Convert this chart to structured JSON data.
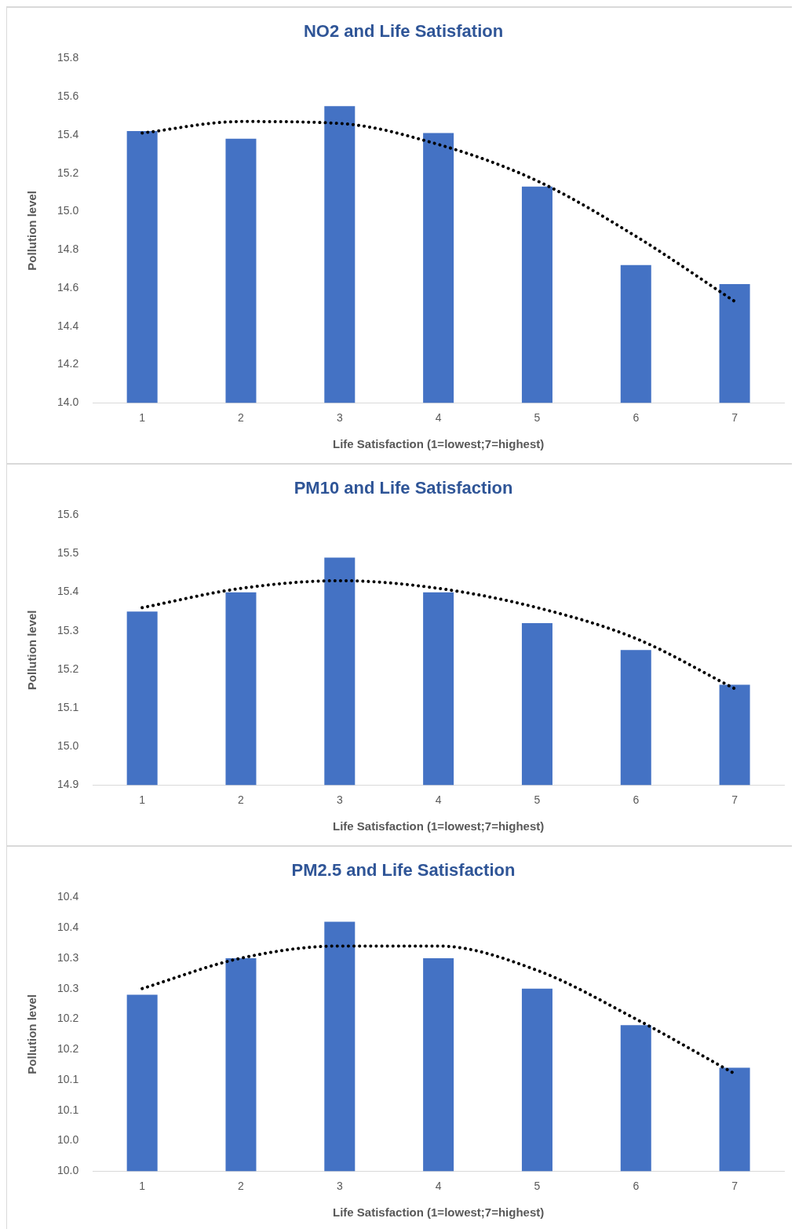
{
  "chart_data": [
    {
      "type": "bar",
      "title": "NO2 and Life Satisfation",
      "xlabel": "Life Satisfaction (1=lowest;7=highest)",
      "ylabel": "Pollution level",
      "categories": [
        "1",
        "2",
        "3",
        "4",
        "5",
        "6",
        "7"
      ],
      "ylim": [
        14.0,
        15.8
      ],
      "yticks": [
        {
          "value": 14.0,
          "label": "14.0"
        },
        {
          "value": 14.2,
          "label": "14.2"
        },
        {
          "value": 14.4,
          "label": "14.4"
        },
        {
          "value": 14.6,
          "label": "14.6"
        },
        {
          "value": 14.8,
          "label": "14.8"
        },
        {
          "value": 15.0,
          "label": "15.0"
        },
        {
          "value": 15.2,
          "label": "15.2"
        },
        {
          "value": 15.4,
          "label": "15.4"
        },
        {
          "value": 15.6,
          "label": "15.6"
        },
        {
          "value": 15.8,
          "label": "15.8"
        }
      ],
      "grid": false,
      "legend": false,
      "series": [
        {
          "color": "#4472c4",
          "values": [
            15.42,
            15.38,
            15.55,
            15.41,
            15.13,
            14.72,
            14.62
          ]
        },
        {
          "type": "line",
          "color": "#000000",
          "line_style": "dotted",
          "marker": "none",
          "values": [
            15.41,
            15.47,
            15.46,
            15.35,
            15.16,
            14.87,
            14.53
          ]
        }
      ]
    },
    {
      "type": "bar",
      "title": "PM10 and Life Satisfaction",
      "xlabel": "Life Satisfaction (1=lowest;7=highest)",
      "ylabel": "Pollution level",
      "categories": [
        "1",
        "2",
        "3",
        "4",
        "5",
        "6",
        "7"
      ],
      "ylim": [
        14.9,
        15.6
      ],
      "yticks": [
        {
          "value": 14.9,
          "label": "14.9"
        },
        {
          "value": 15.0,
          "label": "15.0"
        },
        {
          "value": 15.1,
          "label": "15.1"
        },
        {
          "value": 15.2,
          "label": "15.2"
        },
        {
          "value": 15.3,
          "label": "15.3"
        },
        {
          "value": 15.4,
          "label": "15.4"
        },
        {
          "value": 15.5,
          "label": "15.5"
        },
        {
          "value": 15.6,
          "label": "15.6"
        }
      ],
      "grid": false,
      "legend": false,
      "series": [
        {
          "color": "#4472c4",
          "values": [
            15.35,
            15.4,
            15.49,
            15.4,
            15.32,
            15.25,
            15.16
          ]
        },
        {
          "type": "line",
          "color": "#000000",
          "line_style": "dotted",
          "marker": "none",
          "values": [
            15.36,
            15.41,
            15.43,
            15.41,
            15.36,
            15.28,
            15.15
          ]
        }
      ]
    },
    {
      "type": "bar",
      "title": "PM2.5 and Life Satisfaction",
      "xlabel": "Life Satisfaction (1=lowest;7=highest)",
      "ylabel": "Pollution level",
      "categories": [
        "1",
        "2",
        "3",
        "4",
        "5",
        "6",
        "7"
      ],
      "ylim": [
        10.0,
        10.45
      ],
      "yticks": [
        {
          "value": 10.0,
          "label": "10.0"
        },
        {
          "value": 10.05,
          "label": "10.0"
        },
        {
          "value": 10.1,
          "label": "10.1"
        },
        {
          "value": 10.15,
          "label": "10.1"
        },
        {
          "value": 10.2,
          "label": "10.2"
        },
        {
          "value": 10.25,
          "label": "10.2"
        },
        {
          "value": 10.3,
          "label": "10.3"
        },
        {
          "value": 10.35,
          "label": "10.3"
        },
        {
          "value": 10.4,
          "label": "10.4"
        },
        {
          "value": 10.45,
          "label": "10.4"
        }
      ],
      "grid": false,
      "legend": false,
      "series": [
        {
          "color": "#4472c4",
          "values": [
            10.29,
            10.35,
            10.41,
            10.35,
            10.3,
            10.24,
            10.17
          ]
        },
        {
          "type": "line",
          "color": "#000000",
          "line_style": "dotted",
          "marker": "none",
          "values": [
            10.3,
            10.35,
            10.37,
            10.37,
            10.33,
            10.25,
            10.16
          ]
        }
      ]
    }
  ]
}
